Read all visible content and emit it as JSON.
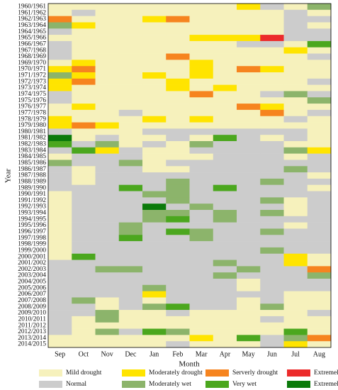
{
  "chart_data": {
    "type": "heatmap",
    "x_label": "Month",
    "y_label": "Year",
    "x": [
      "Sep",
      "Oct",
      "Nov",
      "Dec",
      "Jan",
      "Feb",
      "Mar",
      "Apr",
      "May",
      "Jun",
      "Jul",
      "Aug"
    ],
    "categories": [
      "1960/1961",
      "1961/1962",
      "1962/1963",
      "1963/1964",
      "1964/1965",
      "1965/1966",
      "1966/1967",
      "1967/1968",
      "1968/1969",
      "1969/1970",
      "1970/1971",
      "1971/1972",
      "1972/1973",
      "1973/1974",
      "1974/1975",
      "1975/1976",
      "1976/1977",
      "1977/1978",
      "1978/1979",
      "1979/1980",
      "1980/1981",
      "1981/1982",
      "1982/1983",
      "1983/1984",
      "1984/1985",
      "1985/1986",
      "1986/1987",
      "1987/1988",
      "1988/1989",
      "1989/1990",
      "1990/1991",
      "1991/1992",
      "1992/1993",
      "1993/1994",
      "1994/1995",
      "1995/1996",
      "1996/1997",
      "1997/1998",
      "1998/1999",
      "1999/2000",
      "2000/2001",
      "2001/2002",
      "2002/2003",
      "2003/2004",
      "2004/2005",
      "2005/2006",
      "2006/2007",
      "2007/2008",
      "2008/2009",
      "2009/2010",
      "2010/2011",
      "2011/2012",
      "2012/2013",
      "2013/2014",
      "2014/2015"
    ],
    "legend": [
      {
        "name": "Mild drought",
        "color": "#f6f1bc"
      },
      {
        "name": "Moderately drought",
        "color": "#ffe400"
      },
      {
        "name": "Serverly drought",
        "color": "#f6841f"
      },
      {
        "name": "Extremely drought",
        "color": "#ec2b2b"
      },
      {
        "name": "Normal",
        "color": "#cccccc"
      },
      {
        "name": "Moderately wet",
        "color": "#8cb46b"
      },
      {
        "name": "Very wet",
        "color": "#4ba71e"
      },
      {
        "name": "Extremely wet",
        "color": "#0b7a0b"
      }
    ],
    "values": [
      [
        0,
        0,
        0,
        0,
        0,
        0,
        0,
        0,
        1,
        4,
        0,
        5
      ],
      [
        0,
        4,
        0,
        0,
        0,
        0,
        0,
        0,
        0,
        0,
        4,
        0
      ],
      [
        2,
        0,
        0,
        0,
        1,
        2,
        0,
        0,
        0,
        0,
        4,
        4
      ],
      [
        5,
        1,
        0,
        0,
        0,
        0,
        0,
        0,
        0,
        0,
        4,
        0
      ],
      [
        4,
        0,
        0,
        0,
        0,
        0,
        0,
        0,
        0,
        0,
        4,
        4
      ],
      [
        0,
        0,
        0,
        0,
        0,
        0,
        1,
        1,
        1,
        3,
        4,
        4
      ],
      [
        4,
        0,
        0,
        0,
        0,
        0,
        0,
        0,
        4,
        4,
        0,
        6
      ],
      [
        4,
        0,
        0,
        0,
        0,
        0,
        0,
        0,
        0,
        0,
        1,
        0
      ],
      [
        4,
        0,
        0,
        0,
        0,
        2,
        0,
        0,
        0,
        0,
        0,
        4
      ],
      [
        0,
        1,
        0,
        0,
        0,
        0,
        1,
        0,
        0,
        0,
        0,
        0
      ],
      [
        1,
        2,
        0,
        0,
        0,
        0,
        1,
        0,
        2,
        1,
        0,
        0
      ],
      [
        5,
        1,
        0,
        0,
        1,
        0,
        1,
        0,
        0,
        0,
        0,
        0
      ],
      [
        1,
        2,
        0,
        0,
        0,
        1,
        0,
        0,
        0,
        0,
        0,
        4
      ],
      [
        1,
        0,
        0,
        0,
        0,
        1,
        0,
        1,
        0,
        0,
        0,
        0
      ],
      [
        4,
        0,
        0,
        0,
        0,
        0,
        2,
        0,
        0,
        4,
        5,
        4
      ],
      [
        4,
        0,
        0,
        0,
        0,
        0,
        0,
        0,
        0,
        0,
        0,
        5
      ],
      [
        0,
        1,
        0,
        0,
        0,
        0,
        0,
        0,
        2,
        1,
        0,
        0
      ],
      [
        0,
        0,
        0,
        4,
        0,
        0,
        0,
        0,
        0,
        2,
        0,
        4
      ],
      [
        1,
        0,
        0,
        0,
        1,
        0,
        1,
        0,
        0,
        0,
        4,
        0
      ],
      [
        1,
        2,
        1,
        0,
        0,
        0,
        0,
        0,
        0,
        0,
        0,
        0
      ],
      [
        4,
        0,
        0,
        0,
        4,
        4,
        4,
        4,
        4,
        4,
        4,
        0
      ],
      [
        7,
        0,
        4,
        0,
        0,
        4,
        0,
        6,
        4,
        0,
        4,
        0
      ],
      [
        6,
        4,
        5,
        0,
        4,
        0,
        5,
        4,
        4,
        4,
        0,
        0
      ],
      [
        4,
        6,
        1,
        4,
        0,
        0,
        4,
        4,
        4,
        4,
        5,
        1
      ],
      [
        0,
        4,
        4,
        4,
        0,
        0,
        0,
        4,
        4,
        4,
        0,
        4
      ],
      [
        5,
        4,
        4,
        5,
        0,
        4,
        4,
        4,
        4,
        4,
        4,
        4
      ],
      [
        4,
        0,
        4,
        4,
        0,
        0,
        4,
        4,
        4,
        4,
        5,
        4
      ],
      [
        4,
        0,
        4,
        4,
        4,
        4,
        4,
        4,
        4,
        4,
        4,
        0
      ],
      [
        4,
        0,
        4,
        4,
        4,
        5,
        4,
        4,
        4,
        5,
        4,
        4
      ],
      [
        4,
        4,
        4,
        6,
        4,
        5,
        4,
        6,
        4,
        4,
        4,
        0
      ],
      [
        0,
        4,
        4,
        4,
        5,
        5,
        4,
        4,
        4,
        4,
        4,
        4
      ],
      [
        0,
        4,
        4,
        4,
        4,
        5,
        4,
        4,
        4,
        5,
        0,
        4
      ],
      [
        0,
        4,
        4,
        4,
        7,
        4,
        5,
        4,
        4,
        4,
        0,
        4
      ],
      [
        0,
        4,
        4,
        4,
        5,
        5,
        4,
        5,
        4,
        5,
        0,
        4
      ],
      [
        0,
        4,
        4,
        4,
        5,
        6,
        4,
        5,
        4,
        4,
        4,
        4
      ],
      [
        0,
        4,
        4,
        5,
        4,
        4,
        4,
        4,
        4,
        4,
        0,
        4
      ],
      [
        0,
        4,
        4,
        5,
        4,
        6,
        5,
        4,
        4,
        5,
        4,
        4
      ],
      [
        0,
        4,
        4,
        6,
        4,
        4,
        5,
        4,
        4,
        4,
        4,
        4
      ],
      [
        0,
        4,
        4,
        4,
        4,
        4,
        4,
        4,
        4,
        4,
        4,
        4
      ],
      [
        0,
        4,
        4,
        4,
        4,
        4,
        4,
        4,
        4,
        5,
        4,
        4
      ],
      [
        0,
        6,
        4,
        4,
        4,
        4,
        4,
        4,
        4,
        4,
        1,
        0
      ],
      [
        4,
        4,
        4,
        4,
        4,
        4,
        4,
        5,
        4,
        4,
        1,
        0
      ],
      [
        4,
        4,
        5,
        5,
        4,
        4,
        4,
        4,
        5,
        4,
        4,
        2
      ],
      [
        4,
        4,
        4,
        4,
        4,
        4,
        4,
        5,
        4,
        4,
        4,
        5
      ],
      [
        4,
        4,
        4,
        4,
        4,
        4,
        4,
        4,
        0,
        4,
        4,
        4
      ],
      [
        4,
        4,
        4,
        4,
        5,
        4,
        4,
        4,
        0,
        4,
        4,
        4
      ],
      [
        4,
        4,
        4,
        4,
        1,
        4,
        4,
        4,
        4,
        4,
        0,
        0
      ],
      [
        4,
        5,
        0,
        4,
        0,
        4,
        4,
        4,
        0,
        4,
        0,
        0
      ],
      [
        4,
        4,
        0,
        4,
        5,
        6,
        4,
        4,
        0,
        5,
        0,
        0
      ],
      [
        4,
        4,
        5,
        0,
        0,
        4,
        0,
        0,
        0,
        0,
        0,
        4
      ],
      [
        4,
        0,
        5,
        0,
        0,
        0,
        0,
        0,
        0,
        4,
        0,
        0
      ],
      [
        4,
        0,
        0,
        0,
        0,
        0,
        0,
        0,
        0,
        0,
        0,
        0
      ],
      [
        4,
        0,
        5,
        4,
        6,
        5,
        0,
        0,
        0,
        0,
        6,
        0
      ],
      [
        0,
        0,
        0,
        0,
        0,
        0,
        1,
        0,
        6,
        4,
        5,
        2
      ],
      [
        0,
        0,
        0,
        0,
        0,
        4,
        0,
        0,
        0,
        4,
        1,
        0
      ]
    ]
  }
}
